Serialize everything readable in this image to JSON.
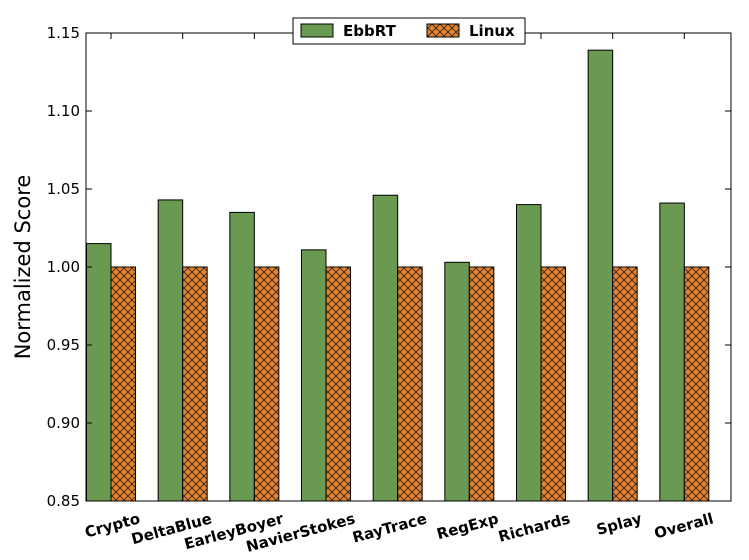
{
  "chart_data": {
    "type": "bar",
    "title": "",
    "xlabel": "",
    "ylabel": "Normalized Score",
    "ylim": [
      0.85,
      1.15
    ],
    "yticks": [
      "0.85",
      "0.90",
      "0.95",
      "1.00",
      "1.05",
      "1.10",
      "1.15"
    ],
    "categories": [
      "Crypto",
      "DeltaBlue",
      "EarleyBoyer",
      "NavierStokes",
      "RayTrace",
      "RegExp",
      "Richards",
      "Splay",
      "Overall"
    ],
    "series": [
      {
        "name": "EbbRT",
        "color": "#6a9a52",
        "pattern": "solid",
        "values": [
          1.015,
          1.043,
          1.035,
          1.011,
          1.046,
          1.003,
          1.04,
          1.139,
          1.041
        ]
      },
      {
        "name": "Linux",
        "color": "#e8822a",
        "pattern": "crosshatch",
        "values": [
          1.0,
          1.0,
          1.0,
          1.0,
          1.0,
          1.0,
          1.0,
          1.0,
          1.0
        ]
      }
    ],
    "legend": {
      "position": "top-center"
    },
    "grid": false
  }
}
